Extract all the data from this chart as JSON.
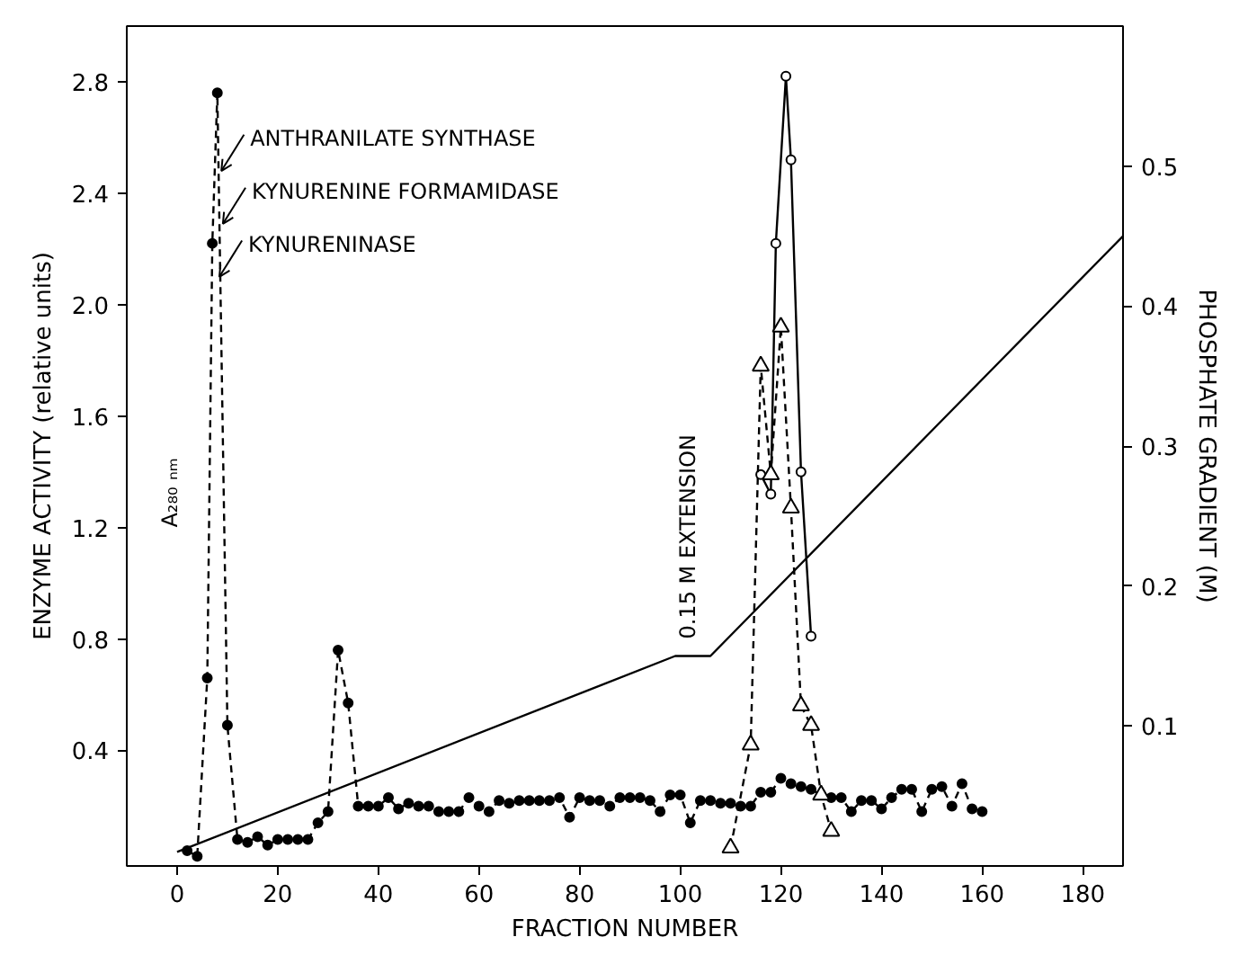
{
  "chart_data": {
    "type": "line",
    "xlabel": "FRACTION NUMBER",
    "ylabel": "ENZYME ACTIVITY (relative units)",
    "y2label": "PHOSPHATE GRADIENT (M)",
    "xlim": [
      -10,
      188
    ],
    "ylim": [
      -0.015,
      3.0
    ],
    "y2lim": [
      0,
      0.6
    ],
    "xticks": [
      0,
      20,
      40,
      60,
      80,
      100,
      120,
      140,
      160,
      180
    ],
    "yticks": [
      0.4,
      0.8,
      1.2,
      1.6,
      {
        "value": 2.0,
        "label": "2.0"
      },
      2.4,
      2.8
    ],
    "y2ticks": [
      0.1,
      0.2,
      0.3,
      0.4,
      0.5
    ],
    "grid": false,
    "series": [
      {
        "color": "#000000",
        "marker": "circle",
        "line_style": "dashed",
        "x": [
          2,
          4,
          6,
          7,
          8,
          10,
          12,
          14,
          16,
          18,
          20,
          22,
          24,
          26,
          28,
          30,
          32,
          34,
          36,
          38,
          40,
          42,
          44,
          46,
          48,
          50,
          52,
          54,
          56,
          58,
          60,
          62,
          64,
          66,
          68,
          70,
          72,
          74,
          76,
          78,
          80,
          82,
          84,
          86,
          88,
          90,
          92,
          94,
          96,
          98,
          100,
          102,
          104,
          106,
          108,
          110,
          112,
          114,
          116,
          118,
          120,
          122,
          124,
          126,
          128,
          130,
          132,
          134,
          136,
          138,
          140,
          142,
          144,
          146,
          148,
          150,
          152,
          154,
          156,
          158,
          160
        ],
        "values": [
          0.04,
          0.02,
          0.66,
          2.22,
          2.76,
          0.49,
          0.08,
          0.07,
          0.09,
          0.06,
          0.08,
          0.08,
          0.08,
          0.08,
          0.14,
          0.18,
          0.76,
          0.57,
          0.2,
          0.2,
          0.2,
          0.23,
          0.19,
          0.21,
          0.2,
          0.2,
          0.18,
          0.18,
          0.18,
          0.23,
          0.2,
          0.18,
          0.22,
          0.21,
          0.22,
          0.22,
          0.22,
          0.22,
          0.23,
          0.16,
          0.23,
          0.22,
          0.22,
          0.2,
          0.23,
          0.23,
          0.23,
          0.22,
          0.18,
          0.24,
          0.24,
          0.14,
          0.22,
          0.22,
          0.21,
          0.21,
          0.2,
          0.2,
          0.25,
          0.25,
          0.3,
          0.28,
          0.27,
          0.26,
          0.24,
          0.23,
          0.23,
          0.18,
          0.22,
          0.22,
          0.19,
          0.23,
          0.26,
          0.26,
          0.18,
          0.26,
          0.27,
          0.2,
          0.28,
          0.19,
          0.18
        ]
      },
      {
        "color": "#000000",
        "marker": "circle",
        "line_style": "solid",
        "x": [
          116,
          118,
          119,
          121,
          122,
          124,
          126
        ],
        "values": [
          1.39,
          1.32,
          2.22,
          2.82,
          2.52,
          1.4,
          0.81
        ]
      },
      {
        "color": "#000000",
        "marker": "triangle",
        "line_style": "dashed",
        "x": [
          110,
          114,
          116,
          118,
          120,
          122,
          124,
          126,
          128,
          130
        ],
        "values": [
          0.05,
          0.42,
          1.78,
          1.39,
          1.92,
          1.27,
          0.56,
          0.49,
          0.24,
          0.11
        ]
      },
      {
        "color": "#000000",
        "marker": "none",
        "line_style": "solid",
        "axis": "y2",
        "x": [
          0,
          99,
          106,
          188
        ],
        "values": [
          0.01,
          0.15,
          0.15,
          0.45
        ]
      }
    ],
    "annotations": [
      {
        "text": "ANTHRANILATE SYNTHASE",
        "x": 8.8,
        "y": 2.48
      },
      {
        "text": "KYNURENINE FORMAMIDASE",
        "x": 9.1,
        "y": 2.29
      },
      {
        "text": "KYNURENINASE",
        "x": 8.4,
        "y": 2.1
      },
      "A₂₈₀ ₙₘ",
      "0.15 M EXTENSION"
    ]
  }
}
